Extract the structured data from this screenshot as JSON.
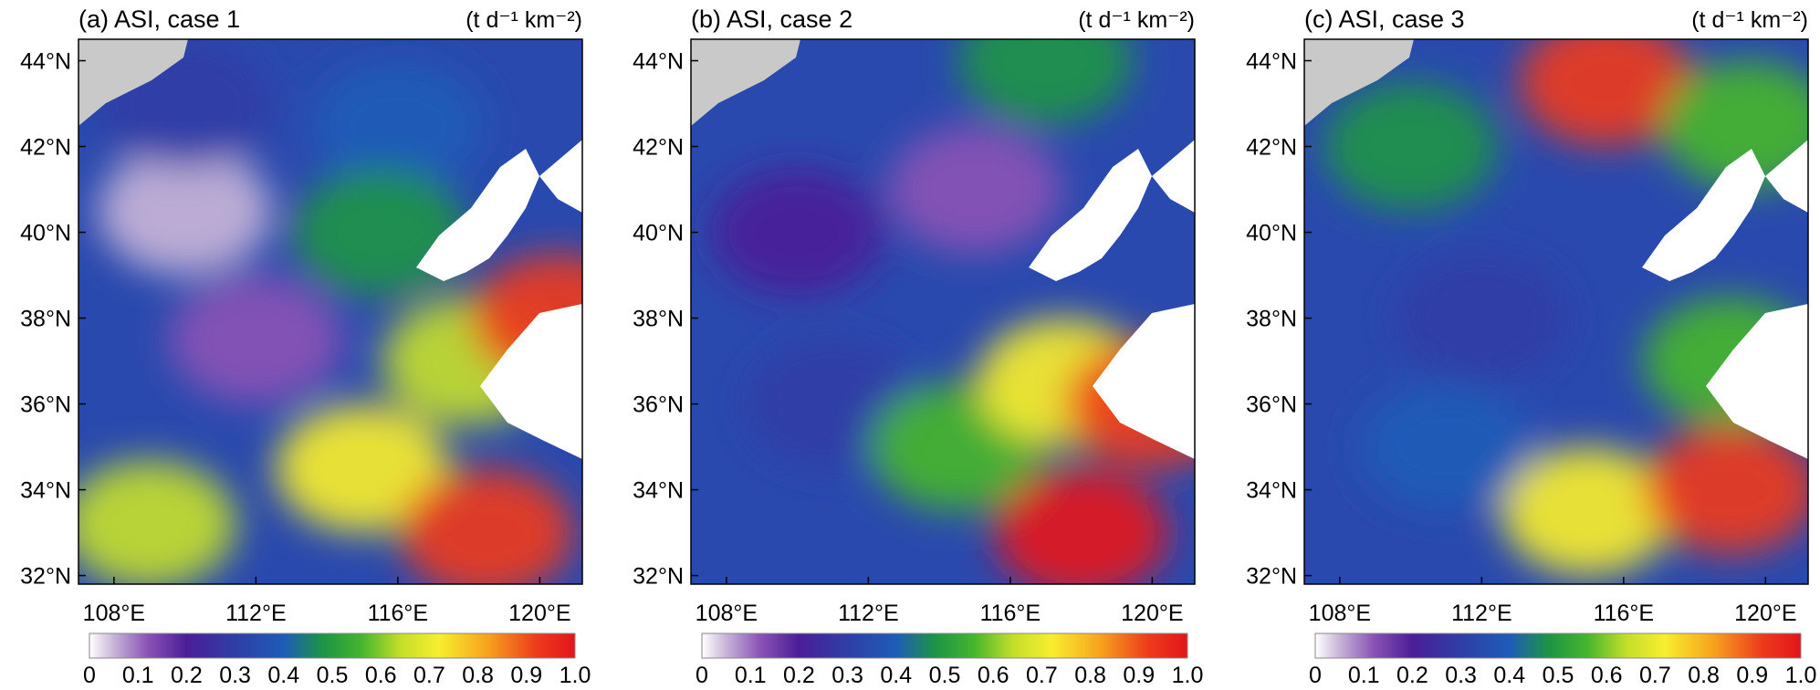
{
  "panels": [
    {
      "title": "(a) ASI, case 1",
      "units": "(t d⁻¹ km⁻²)"
    },
    {
      "title": "(b) ASI, case 2",
      "units": "(t d⁻¹ km⁻²)"
    },
    {
      "title": "(c) ASI, case 3",
      "units": "(t d⁻¹ km⁻²)"
    }
  ],
  "chart_data": [
    {
      "type": "heatmap",
      "title": "(a) ASI, case 1",
      "units": "(t d⁻¹ km⁻²)",
      "x_ticks": [
        "108°E",
        "112°E",
        "116°E",
        "120°E"
      ],
      "y_ticks": [
        "32°N",
        "34°N",
        "36°N",
        "38°N",
        "40°N",
        "42°N",
        "44°N"
      ],
      "xlim": [
        107.0,
        121.2
      ],
      "ylim": [
        31.8,
        44.5
      ],
      "colorbar_ticks": [
        "0",
        "0.1",
        "0.2",
        "0.3",
        "0.4",
        "0.5",
        "0.6",
        "0.7",
        "0.8",
        "0.9",
        "1.0"
      ],
      "clim": [
        0,
        1.0
      ],
      "field_centers": [
        {
          "lon": 110.0,
          "lat": 40.5,
          "value": 0.05
        },
        {
          "lon": 112.0,
          "lat": 37.5,
          "value": 0.18
        },
        {
          "lon": 110.0,
          "lat": 43.0,
          "value": 0.3
        },
        {
          "lon": 116.0,
          "lat": 42.5,
          "value": 0.4
        },
        {
          "lon": 115.5,
          "lat": 40.0,
          "value": 0.55
        },
        {
          "lon": 118.0,
          "lat": 37.0,
          "value": 0.7
        },
        {
          "lon": 115.0,
          "lat": 34.5,
          "value": 0.72
        },
        {
          "lon": 118.5,
          "lat": 33.0,
          "value": 0.97
        },
        {
          "lon": 120.5,
          "lat": 38.0,
          "value": 0.95
        },
        {
          "lon": 109.0,
          "lat": 33.2,
          "value": 0.65
        }
      ]
    },
    {
      "type": "heatmap",
      "title": "(b) ASI, case 2",
      "units": "(t d⁻¹ km⁻²)",
      "x_ticks": [
        "108°E",
        "112°E",
        "116°E",
        "120°E"
      ],
      "y_ticks": [
        "32°N",
        "34°N",
        "36°N",
        "38°N",
        "40°N",
        "42°N",
        "44°N"
      ],
      "xlim": [
        107.0,
        121.2
      ],
      "ylim": [
        31.8,
        44.5
      ],
      "colorbar_ticks": [
        "0",
        "0.1",
        "0.2",
        "0.3",
        "0.4",
        "0.5",
        "0.6",
        "0.7",
        "0.8",
        "0.9",
        "1.0"
      ],
      "clim": [
        0,
        1.0
      ],
      "field_centers": [
        {
          "lon": 110.0,
          "lat": 40.0,
          "value": 0.28
        },
        {
          "lon": 115.0,
          "lat": 41.0,
          "value": 0.18
        },
        {
          "lon": 111.0,
          "lat": 36.0,
          "value": 0.33
        },
        {
          "lon": 117.0,
          "lat": 44.0,
          "value": 0.55
        },
        {
          "lon": 114.5,
          "lat": 35.0,
          "value": 0.6
        },
        {
          "lon": 117.5,
          "lat": 36.5,
          "value": 0.72
        },
        {
          "lon": 118.0,
          "lat": 33.0,
          "value": 1.0
        },
        {
          "lon": 120.0,
          "lat": 36.0,
          "value": 0.95
        }
      ]
    },
    {
      "type": "heatmap",
      "title": "(c) ASI, case 3",
      "units": "(t d⁻¹ km⁻²)",
      "x_ticks": [
        "108°E",
        "112°E",
        "116°E",
        "120°E"
      ],
      "y_ticks": [
        "32°N",
        "34°N",
        "36°N",
        "38°N",
        "40°N",
        "42°N",
        "44°N"
      ],
      "xlim": [
        107.0,
        121.2
      ],
      "ylim": [
        31.8,
        44.5
      ],
      "colorbar_ticks": [
        "0",
        "0.1",
        "0.2",
        "0.3",
        "0.4",
        "0.5",
        "0.6",
        "0.7",
        "0.8",
        "0.9",
        "1.0"
      ],
      "clim": [
        0,
        1.0
      ],
      "field_centers": [
        {
          "lon": 112.0,
          "lat": 38.0,
          "value": 0.35
        },
        {
          "lon": 110.0,
          "lat": 42.0,
          "value": 0.5
        },
        {
          "lon": 115.5,
          "lat": 43.5,
          "value": 0.95
        },
        {
          "lon": 119.5,
          "lat": 42.5,
          "value": 0.6
        },
        {
          "lon": 115.0,
          "lat": 33.5,
          "value": 0.75
        },
        {
          "lon": 119.0,
          "lat": 34.0,
          "value": 0.97
        },
        {
          "lon": 119.0,
          "lat": 37.0,
          "value": 0.6
        },
        {
          "lon": 111.0,
          "lat": 35.0,
          "value": 0.45
        }
      ]
    }
  ]
}
